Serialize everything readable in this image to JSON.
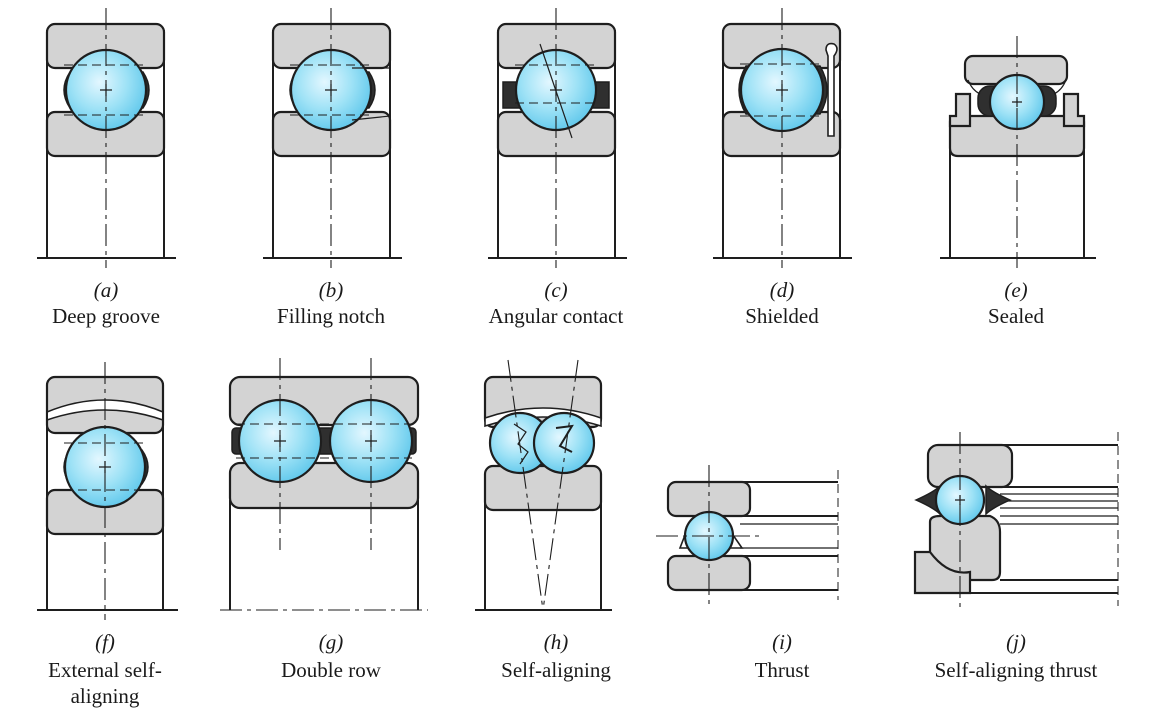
{
  "colors": {
    "ball": "#7fd6f2",
    "race": "#d3d3d3",
    "cage": "#2f2f2f",
    "line": "#1e1e1e"
  },
  "bearings": [
    {
      "letter": "(a)",
      "caption": "Deep groove"
    },
    {
      "letter": "(b)",
      "caption": "Filling notch"
    },
    {
      "letter": "(c)",
      "caption": "Angular contact"
    },
    {
      "letter": "(d)",
      "caption": "Shielded"
    },
    {
      "letter": "(e)",
      "caption": "Sealed"
    },
    {
      "letter": "(f)",
      "caption": "External self-aligning"
    },
    {
      "letter": "(g)",
      "caption": "Double row"
    },
    {
      "letter": "(h)",
      "caption": "Self-aligning"
    },
    {
      "letter": "(i)",
      "caption": "Thrust"
    },
    {
      "letter": "(j)",
      "caption": "Self-aligning thrust"
    }
  ]
}
